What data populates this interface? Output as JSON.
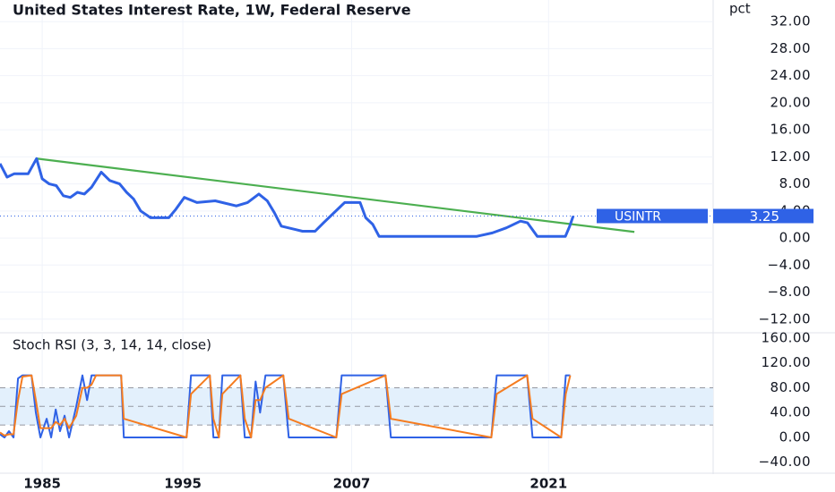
{
  "chart_data": [
    {
      "type": "line",
      "title": "United States Interest Rate, 1W, Federal Reserve",
      "y_unit": "pct",
      "xlim": [
        1982.0,
        2032.7
      ],
      "xticks": [
        1985,
        1995,
        2007,
        2021
      ],
      "ylim": [
        -13.75,
        35.2
      ],
      "yticks": [
        {
          "value": 32,
          "label": "32.00"
        },
        {
          "value": 28,
          "label": "28.00"
        },
        {
          "value": 24,
          "label": "24.00"
        },
        {
          "value": 20,
          "label": "20.00"
        },
        {
          "value": 16,
          "label": "16.00"
        },
        {
          "value": 12,
          "label": "12.00"
        },
        {
          "value": 8,
          "label": "8.00"
        },
        {
          "value": 4,
          "label": "4.00"
        },
        {
          "value": 0,
          "label": "0.00"
        },
        {
          "value": -4,
          "label": "−4.00"
        },
        {
          "value": -8,
          "label": "−8.00"
        },
        {
          "value": -12,
          "label": "−12.00"
        }
      ],
      "grid": true,
      "x": [
        1982.0,
        1982.5,
        1983.0,
        1983.5,
        1984.0,
        1984.6,
        1985.0,
        1985.5,
        1986.0,
        1986.5,
        1987.0,
        1987.5,
        1988.0,
        1988.5,
        1989.2,
        1989.8,
        1990.5,
        1991.0,
        1991.5,
        1992.0,
        1992.7,
        1993.5,
        1994.0,
        1994.5,
        1995.1,
        1996.0,
        1997.3,
        1998.8,
        1999.6,
        2000.4,
        2001.0,
        2001.5,
        2002.0,
        2003.0,
        2003.5,
        2004.4,
        2005.0,
        2006.5,
        2007.6,
        2008.0,
        2008.5,
        2008.95,
        2015.9,
        2017.0,
        2018.0,
        2019.0,
        2019.5,
        2020.2,
        2022.2,
        2022.5,
        2022.75
      ],
      "series": [
        {
          "name": "USINTR",
          "color": "#2f62e6",
          "values": [
            11.0,
            9.0,
            9.5,
            9.5,
            9.5,
            11.75,
            8.75,
            8.0,
            7.75,
            6.25,
            6.0,
            6.75,
            6.5,
            7.5,
            9.75,
            8.5,
            8.0,
            6.75,
            5.75,
            4.0,
            3.0,
            3.0,
            3.0,
            4.25,
            6.0,
            5.25,
            5.5,
            4.75,
            5.25,
            6.5,
            5.5,
            3.75,
            1.75,
            1.25,
            1.0,
            1.0,
            2.25,
            5.25,
            5.25,
            3.0,
            2.0,
            0.25,
            0.25,
            0.75,
            1.5,
            2.5,
            2.25,
            0.25,
            0.25,
            1.75,
            3.25
          ]
        }
      ],
      "trend": {
        "color": "#4caf50",
        "x": [
          1984.6,
          2027.1
        ],
        "values": [
          11.75,
          0.9
        ]
      }
    },
    {
      "type": "line",
      "title": "Stoch RSI (3, 3, 14, 14, close)",
      "xlim": [
        1982.0,
        2032.7
      ],
      "ylim": [
        -56.3,
        167.2
      ],
      "yticks": [
        {
          "value": 160,
          "label": "160.00"
        },
        {
          "value": 120,
          "label": "120.00"
        },
        {
          "value": 80,
          "label": "80.00"
        },
        {
          "value": 40,
          "label": "40.00"
        },
        {
          "value": 0,
          "label": "0.00"
        },
        {
          "value": -40,
          "label": "−40.00"
        }
      ],
      "bands": [
        80,
        50,
        20
      ],
      "band_color": "#e3f0fc",
      "x": [
        1982.0,
        1982.32,
        1982.64,
        1982.96,
        1983.28,
        1983.6,
        1984.24,
        1984.55,
        1984.87,
        1985.32,
        1985.64,
        1985.96,
        1986.27,
        1986.59,
        1986.91,
        1987.42,
        1987.86,
        1988.19,
        1988.51,
        1988.83,
        1990.61,
        1990.8,
        1995.26,
        1995.58,
        1996.92,
        1997.17,
        1997.56,
        1997.81,
        1999.09,
        1999.4,
        1999.85,
        2000.17,
        2000.49,
        2000.87,
        2002.14,
        2002.53,
        2005.91,
        2006.29,
        2009.41,
        2009.79,
        2016.93,
        2017.31,
        2019.48,
        2019.86,
        2021.9,
        2022.22,
        2022.54
      ],
      "series": [
        {
          "color": "#2f62e6",
          "values": [
            5,
            0,
            10,
            0,
            95,
            100,
            100,
            40,
            0,
            30,
            0,
            45,
            10,
            35,
            0,
            50,
            100,
            60,
            100,
            100,
            100,
            0,
            0,
            100,
            100,
            0,
            0,
            100,
            100,
            0,
            0,
            90,
            40,
            100,
            100,
            0,
            0,
            100,
            100,
            0,
            0,
            100,
            100,
            0,
            0,
            100,
            100
          ]
        },
        {
          "color": "#f57c20",
          "values": [
            8,
            3,
            5,
            5,
            60,
            98,
            100,
            60,
            15,
            15,
            15,
            25,
            20,
            30,
            15,
            35,
            80,
            80,
            85,
            100,
            100,
            30,
            0,
            70,
            100,
            30,
            0,
            70,
            100,
            30,
            0,
            60,
            60,
            80,
            100,
            30,
            0,
            70,
            100,
            30,
            0,
            70,
            100,
            30,
            0,
            70,
            100
          ]
        }
      ]
    }
  ]
}
